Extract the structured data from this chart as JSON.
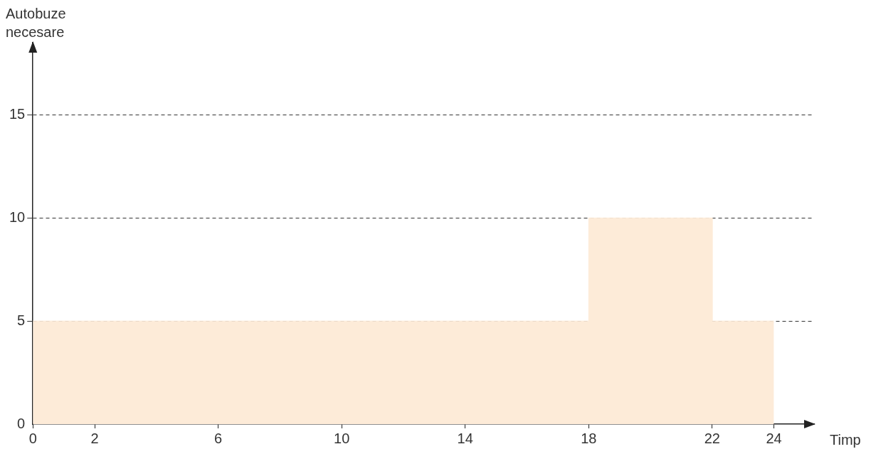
{
  "chart_data": {
    "type": "area",
    "ylabel": "Autobuze necesare",
    "xlabel": "Timp",
    "x": [
      0,
      18,
      18,
      22,
      22,
      24
    ],
    "values": [
      5,
      5,
      10,
      10,
      5,
      5
    ],
    "color": "#fdebd8",
    "xlim": [
      0,
      25.3
    ],
    "xticks": [
      0,
      2,
      6,
      10,
      14,
      18,
      22,
      24
    ],
    "ylim": [
      0,
      18.5
    ],
    "yticks": [
      0,
      5,
      10,
      15
    ],
    "grid": "y",
    "line_style": "dashed"
  }
}
